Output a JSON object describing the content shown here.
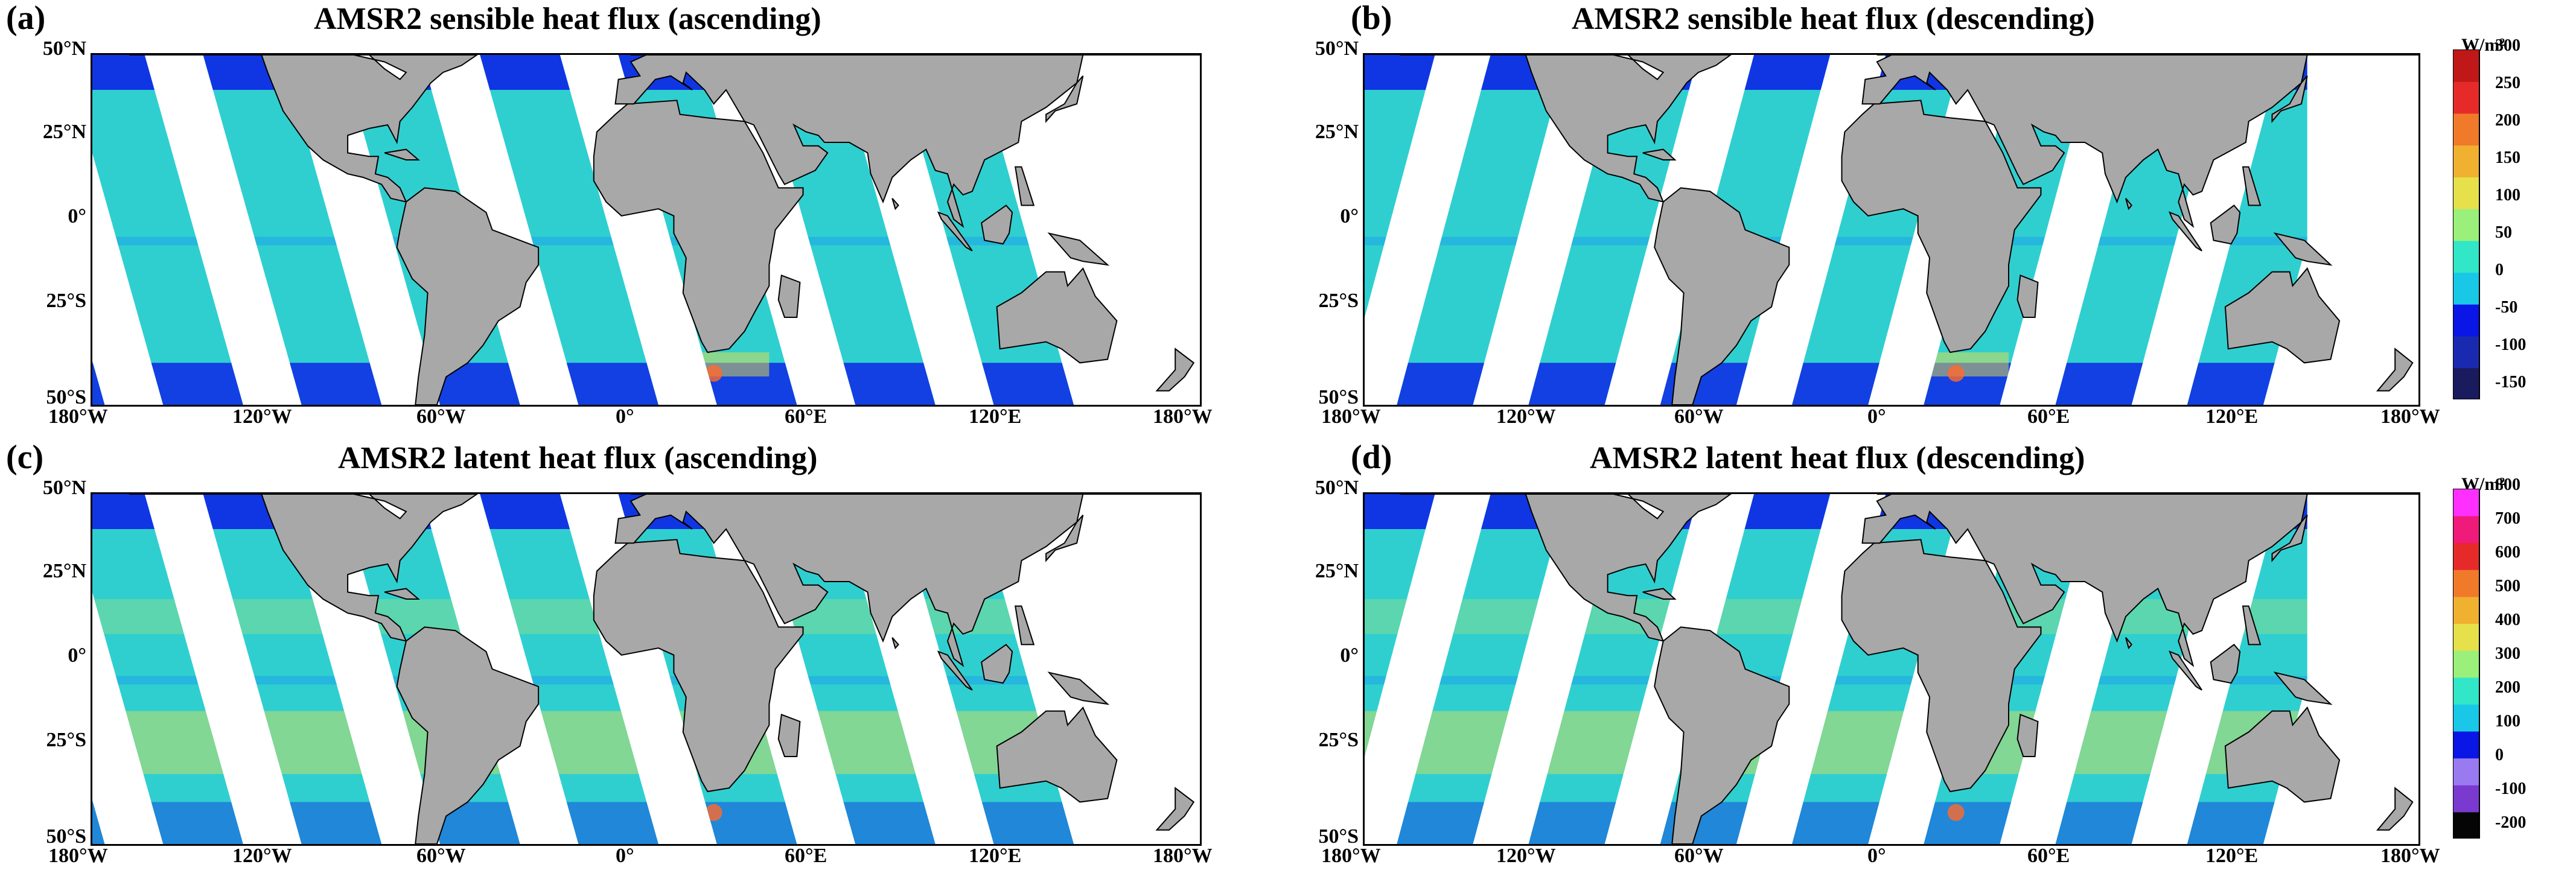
{
  "panels": [
    {
      "label": "(a)",
      "title": "AMSR2 sensible heat flux (ascending)",
      "pass": "ascending",
      "variable": "sensible"
    },
    {
      "label": "(b)",
      "title": "AMSR2 sensible heat flux (descending)",
      "pass": "descending",
      "variable": "sensible"
    },
    {
      "label": "(c)",
      "title": "AMSR2 latent heat flux (ascending)",
      "pass": "ascending",
      "variable": "latent"
    },
    {
      "label": "(d)",
      "title": "AMSR2 latent heat flux (descending)",
      "pass": "descending",
      "variable": "latent"
    }
  ],
  "axes": {
    "y_ticks": [
      "50°N",
      "25°N",
      "0°",
      "25°S",
      "50°S"
    ],
    "x_ticks": [
      "180°W",
      "120°W",
      "60°W",
      "0°",
      "60°E",
      "120°E",
      "180°W"
    ],
    "lat_range": [
      -50,
      50
    ],
    "lon_range": [
      -180,
      180
    ]
  },
  "colorbars": {
    "sensible": {
      "unit": "W/m²",
      "ticks": [
        "300",
        "250",
        "200",
        "150",
        "100",
        "50",
        "0",
        "-50",
        "-100",
        "-150"
      ],
      "range": [
        -150,
        300
      ]
    },
    "latent": {
      "unit": "W/m²",
      "ticks": [
        "800",
        "700",
        "600",
        "500",
        "400",
        "300",
        "200",
        "100",
        "0",
        "-100",
        "-200"
      ],
      "range": [
        -200,
        800
      ]
    }
  },
  "colors": {
    "land": "#a8a8a8",
    "ocean_base": "#2fcfd0",
    "swath_gap": "#ffffff",
    "cold_region": "#0b1be6",
    "warm_region": "#e6e04a"
  }
}
